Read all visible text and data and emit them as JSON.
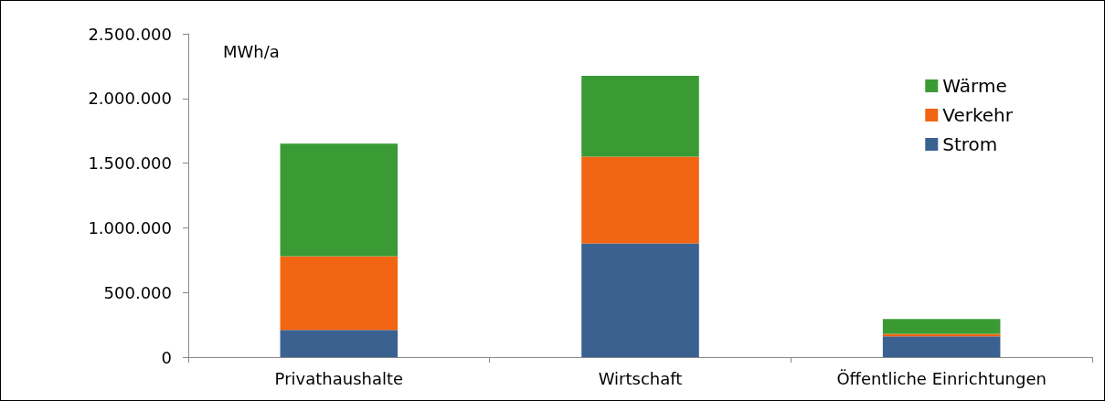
{
  "chart_data": {
    "type": "bar",
    "stacked": true,
    "ylabel": "MWh/a",
    "categories": [
      "Privathaushalte",
      "Wirtschaft",
      "Öffentliche Einrichtungen"
    ],
    "series": [
      {
        "name": "Strom",
        "color": "#3a6190",
        "values": [
          210000,
          880000,
          160000
        ]
      },
      {
        "name": "Verkehr",
        "color": "#f26513",
        "values": [
          570000,
          670000,
          20000
        ]
      },
      {
        "name": "Wärme",
        "color": "#3a9b35",
        "values": [
          870000,
          625000,
          115000
        ]
      }
    ],
    "ylim": [
      0,
      2500000
    ],
    "yticks": [
      0,
      {
        "value": 500000,
        "label": "500.000"
      },
      {
        "value": 1000000,
        "label": "1.000.000"
      },
      {
        "value": 1500000,
        "label": "1.500.000"
      },
      {
        "value": 2000000,
        "label": "2.000.000"
      },
      {
        "value": 2500000,
        "label": "2.500.000"
      }
    ],
    "grid": false,
    "legend": "top right"
  }
}
